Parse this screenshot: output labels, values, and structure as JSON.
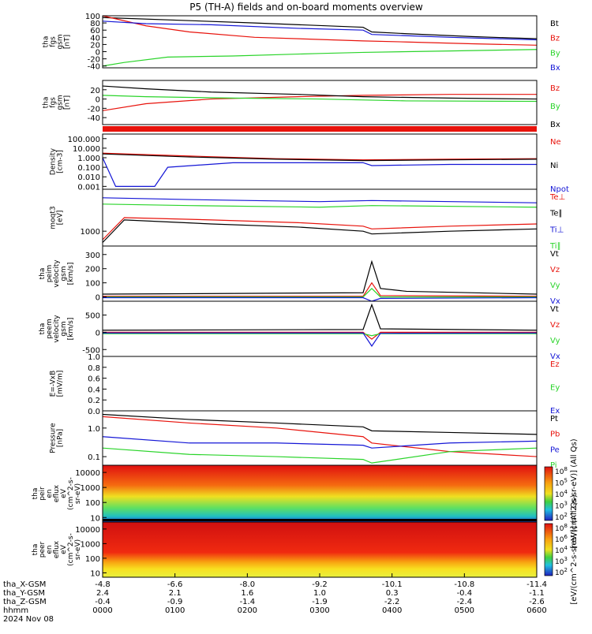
{
  "title": "P5 (TH-A) fields and on-board moments overview",
  "colors": {
    "black": "#000000",
    "red": "#e8130c",
    "green": "#2ad42a",
    "blue": "#1416d6"
  },
  "chart_data": [
    {
      "type": "line",
      "ylabel": [
        "tha",
        "fgs",
        "gsm",
        "[nT]"
      ],
      "yticks": [
        "100",
        "80",
        "60",
        "40",
        "20",
        "0",
        "-20",
        "-40"
      ],
      "ylim": [
        -45,
        100
      ],
      "series": [
        {
          "name": "Bt",
          "color": "black",
          "points": [
            [
              0,
              95
            ],
            [
              0.35,
              80
            ],
            [
              0.6,
              68
            ],
            [
              0.62,
              55
            ],
            [
              0.7,
              50
            ],
            [
              0.85,
              42
            ],
            [
              1,
              36
            ]
          ]
        },
        {
          "name": "Bz",
          "color": "red",
          "points": [
            [
              0,
              100
            ],
            [
              0.1,
              72
            ],
            [
              0.2,
              55
            ],
            [
              0.35,
              40
            ],
            [
              0.6,
              30
            ],
            [
              0.7,
              27
            ],
            [
              0.85,
              22
            ],
            [
              1,
              18
            ]
          ]
        },
        {
          "name": "By",
          "color": "green",
          "points": [
            [
              0,
              -40
            ],
            [
              0.05,
              -30
            ],
            [
              0.15,
              -15
            ],
            [
              0.3,
              -12
            ],
            [
              0.5,
              -5
            ],
            [
              0.6,
              -2
            ],
            [
              0.8,
              2
            ],
            [
              1,
              6
            ]
          ]
        },
        {
          "name": "Bx",
          "color": "blue",
          "points": [
            [
              0,
              85
            ],
            [
              0.1,
              78
            ],
            [
              0.25,
              75
            ],
            [
              0.45,
              65
            ],
            [
              0.6,
              60
            ],
            [
              0.62,
              48
            ],
            [
              0.8,
              40
            ],
            [
              1,
              33
            ]
          ]
        }
      ]
    },
    {
      "type": "line",
      "ylabel": [
        "tha",
        "fgs",
        "gsm",
        "[nT]"
      ],
      "yticks": [
        "20",
        "0",
        "-20",
        "-40"
      ],
      "ylim": [
        -55,
        40
      ],
      "series": [
        {
          "name": "Bz",
          "color": "red",
          "points": [
            [
              0,
              -25
            ],
            [
              0.1,
              -10
            ],
            [
              0.25,
              0
            ],
            [
              0.45,
              5
            ],
            [
              0.6,
              8
            ],
            [
              0.8,
              10
            ],
            [
              1,
              10
            ]
          ]
        },
        {
          "name": "By",
          "color": "green",
          "points": [
            [
              0,
              8
            ],
            [
              0.1,
              5
            ],
            [
              0.3,
              2
            ],
            [
              0.5,
              0
            ],
            [
              0.7,
              -4
            ],
            [
              1,
              -5
            ]
          ]
        },
        {
          "name": "Bx",
          "color": "black",
          "points": [
            [
              0,
              28
            ],
            [
              0.1,
              22
            ],
            [
              0.25,
              15
            ],
            [
              0.45,
              10
            ],
            [
              0.6,
              5
            ],
            [
              0.8,
              2
            ],
            [
              1,
              0
            ]
          ]
        }
      ]
    },
    {
      "type": "line",
      "ylabel": [
        "Density",
        "[cm-3]"
      ],
      "yticks": [
        "100.000",
        "10.000",
        "1.000",
        "0.100",
        "0.010",
        "0.001"
      ],
      "ylim": [
        0.0005,
        300
      ],
      "log": true,
      "series": [
        {
          "name": "Ne",
          "color": "red",
          "points": [
            [
              0,
              3
            ],
            [
              0.2,
              1.5
            ],
            [
              0.4,
              0.8
            ],
            [
              0.6,
              0.6
            ],
            [
              0.8,
              0.7
            ],
            [
              1,
              0.8
            ]
          ]
        },
        {
          "name": "Ni",
          "color": "black",
          "points": [
            [
              0,
              2.5
            ],
            [
              0.2,
              1.2
            ],
            [
              0.4,
              0.7
            ],
            [
              0.6,
              0.5
            ],
            [
              0.8,
              0.6
            ],
            [
              1,
              0.7
            ]
          ]
        },
        {
          "name": "Npot",
          "color": "blue",
          "points": [
            [
              0,
              1
            ],
            [
              0.03,
              0.001
            ],
            [
              0.12,
              0.001
            ],
            [
              0.15,
              0.1
            ],
            [
              0.3,
              0.3
            ],
            [
              0.6,
              0.3
            ],
            [
              0.62,
              0.15
            ],
            [
              0.8,
              0.2
            ],
            [
              1,
              0.2
            ]
          ]
        }
      ]
    },
    {
      "type": "line",
      "ylabel": [
        "moqt3",
        "[eV]"
      ],
      "yticks": [
        "1000"
      ],
      "ylim": [
        300,
        30000
      ],
      "log": true,
      "series": [
        {
          "name": "Te⊥",
          "color": "red",
          "points": [
            [
              0,
              500
            ],
            [
              0.05,
              3000
            ],
            [
              0.25,
              2500
            ],
            [
              0.45,
              2000
            ],
            [
              0.6,
              1500
            ],
            [
              0.62,
              1200
            ],
            [
              0.8,
              1500
            ],
            [
              1,
              1800
            ]
          ]
        },
        {
          "name": "Te∥",
          "color": "black",
          "points": [
            [
              0,
              400
            ],
            [
              0.05,
              2500
            ],
            [
              0.25,
              1800
            ],
            [
              0.45,
              1400
            ],
            [
              0.6,
              1000
            ],
            [
              0.62,
              800
            ],
            [
              0.8,
              1000
            ],
            [
              1,
              1200
            ]
          ]
        },
        {
          "name": "Ti⊥",
          "color": "blue",
          "points": [
            [
              0,
              15000
            ],
            [
              0.2,
              13000
            ],
            [
              0.5,
              11000
            ],
            [
              0.62,
              12000
            ],
            [
              1,
              10000
            ]
          ]
        },
        {
          "name": "Ti∥",
          "color": "green",
          "points": [
            [
              0,
              9000
            ],
            [
              0.2,
              8000
            ],
            [
              0.5,
              7000
            ],
            [
              0.62,
              8000
            ],
            [
              1,
              7000
            ]
          ]
        }
      ]
    },
    {
      "type": "line",
      "ylabel": [
        "tha",
        "peim",
        "velocity",
        "gsm",
        "[km/s]"
      ],
      "yticks": [
        "300",
        "200",
        "100",
        "0"
      ],
      "ylim": [
        -30,
        360
      ],
      "series": [
        {
          "name": "Vt",
          "color": "black",
          "points": [
            [
              0,
              20
            ],
            [
              0.3,
              25
            ],
            [
              0.6,
              30
            ],
            [
              0.62,
              250
            ],
            [
              0.64,
              60
            ],
            [
              0.7,
              40
            ],
            [
              1,
              20
            ]
          ]
        },
        {
          "name": "Vz",
          "color": "red",
          "points": [
            [
              0,
              5
            ],
            [
              0.6,
              5
            ],
            [
              0.62,
              100
            ],
            [
              0.64,
              10
            ],
            [
              1,
              5
            ]
          ]
        },
        {
          "name": "Vy",
          "color": "green",
          "points": [
            [
              0,
              0
            ],
            [
              0.6,
              0
            ],
            [
              0.62,
              60
            ],
            [
              0.64,
              0
            ],
            [
              1,
              0
            ]
          ]
        },
        {
          "name": "Vx",
          "color": "blue",
          "points": [
            [
              0,
              -5
            ],
            [
              0.6,
              -5
            ],
            [
              0.62,
              -40
            ],
            [
              0.64,
              -10
            ],
            [
              1,
              -5
            ]
          ]
        }
      ]
    },
    {
      "type": "line",
      "ylabel": [
        "tha",
        "peem",
        "velocity",
        "gsm",
        "[km/s]"
      ],
      "yticks": [
        "500",
        "0",
        "-500"
      ],
      "ylim": [
        -700,
        900
      ],
      "series": [
        {
          "name": "Vt",
          "color": "black",
          "points": [
            [
              0,
              60
            ],
            [
              0.6,
              80
            ],
            [
              0.62,
              800
            ],
            [
              0.64,
              100
            ],
            [
              1,
              60
            ]
          ]
        },
        {
          "name": "Vz",
          "color": "red",
          "points": [
            [
              0,
              0
            ],
            [
              0.6,
              0
            ],
            [
              0.62,
              -200
            ],
            [
              0.64,
              0
            ],
            [
              1,
              0
            ]
          ]
        },
        {
          "name": "Vy",
          "color": "green",
          "points": [
            [
              0,
              -40
            ],
            [
              0.6,
              -40
            ],
            [
              0.62,
              -100
            ],
            [
              0.64,
              -40
            ],
            [
              1,
              -40
            ]
          ]
        },
        {
          "name": "Vx",
          "color": "blue",
          "points": [
            [
              0,
              -20
            ],
            [
              0.6,
              -20
            ],
            [
              0.62,
              -400
            ],
            [
              0.64,
              -30
            ],
            [
              1,
              -20
            ]
          ]
        }
      ]
    },
    {
      "type": "line",
      "ylabel": [
        "E=-VxB",
        "[mV/m]"
      ],
      "yticks": [
        "1.0",
        "0.8",
        "0.6",
        "0.4",
        "0.2",
        "0.0"
      ],
      "ylim": [
        0,
        1
      ],
      "series": [
        {
          "name": "Ez",
          "color": "red",
          "points": []
        },
        {
          "name": "Ey",
          "color": "green",
          "points": []
        },
        {
          "name": "Ex",
          "color": "blue",
          "points": []
        }
      ]
    },
    {
      "type": "line",
      "ylabel": [
        "Pressure",
        "[nPa]"
      ],
      "yticks": [
        "1.0",
        "0.1"
      ],
      "ylim": [
        0.05,
        4
      ],
      "log": true,
      "series": [
        {
          "name": "Pt",
          "color": "black",
          "points": [
            [
              0,
              3
            ],
            [
              0.2,
              2
            ],
            [
              0.4,
              1.5
            ],
            [
              0.6,
              1.1
            ],
            [
              0.62,
              0.8
            ],
            [
              0.8,
              0.7
            ],
            [
              1,
              0.6
            ]
          ]
        },
        {
          "name": "Pb",
          "color": "red",
          "points": [
            [
              0,
              2.5
            ],
            [
              0.2,
              1.5
            ],
            [
              0.4,
              1.0
            ],
            [
              0.6,
              0.5
            ],
            [
              0.62,
              0.3
            ],
            [
              0.8,
              0.15
            ],
            [
              1,
              0.1
            ]
          ]
        },
        {
          "name": "Pe",
          "color": "blue",
          "points": [
            [
              0,
              0.5
            ],
            [
              0.2,
              0.3
            ],
            [
              0.4,
              0.3
            ],
            [
              0.6,
              0.25
            ],
            [
              0.62,
              0.2
            ],
            [
              0.8,
              0.3
            ],
            [
              1,
              0.35
            ]
          ]
        },
        {
          "name": "Pi",
          "color": "green",
          "points": [
            [
              0,
              0.2
            ],
            [
              0.2,
              0.12
            ],
            [
              0.4,
              0.1
            ],
            [
              0.6,
              0.08
            ],
            [
              0.62,
              0.06
            ],
            [
              0.8,
              0.15
            ],
            [
              1,
              0.2
            ]
          ]
        }
      ]
    },
    {
      "type": "heatmap",
      "ylabel": [
        "tha",
        "peir",
        "en",
        "eflux",
        "eV",
        "(cm^2-s-",
        "sr-eV)"
      ],
      "yticks": [
        "10000",
        "1000",
        "100",
        "10"
      ],
      "ylim": [
        5,
        30000
      ],
      "log": true,
      "colorbar": {
        "label": "[eV/(cm^2-s-sr-eV)] (All Qs)",
        "ticks": [
          "10^8",
          "10^5",
          "10^4",
          "10^3",
          "10^2"
        ]
      }
    },
    {
      "type": "heatmap",
      "ylabel": [
        "tha",
        "peer",
        "en",
        "eflux",
        "eV",
        "(cm^2-s-",
        "sr-eV)"
      ],
      "yticks": [
        "10000",
        "1000",
        "100",
        "10"
      ],
      "ylim": [
        5,
        30000
      ],
      "log": true,
      "colorbar": {
        "label": "[eV/(cm^2-s-sr-eV)] (All Qs)",
        "ticks": [
          "10^8",
          "10^6",
          "10^4",
          "10^3",
          "10^2"
        ]
      }
    }
  ],
  "xaxis": {
    "rows": [
      {
        "label": "tha_X-GSM",
        "values": [
          "-4.8",
          "-6.6",
          "-8.0",
          "-9.2",
          "-10.1",
          "-10.8",
          "-11.4"
        ]
      },
      {
        "label": "tha_Y-GSM",
        "values": [
          "2.4",
          "2.1",
          "1.6",
          "1.0",
          "0.3",
          "-0.4",
          "-1.1"
        ]
      },
      {
        "label": "tha_Z-GSM",
        "values": [
          "-0.4",
          "-0.9",
          "-1.4",
          "-1.9",
          "-2.2",
          "-2.4",
          "-2.6"
        ]
      },
      {
        "label": "hhmm",
        "values": [
          "0000",
          "0100",
          "0200",
          "0300",
          "0400",
          "0500",
          "0600"
        ]
      }
    ],
    "date": "2024 Nov 08"
  }
}
